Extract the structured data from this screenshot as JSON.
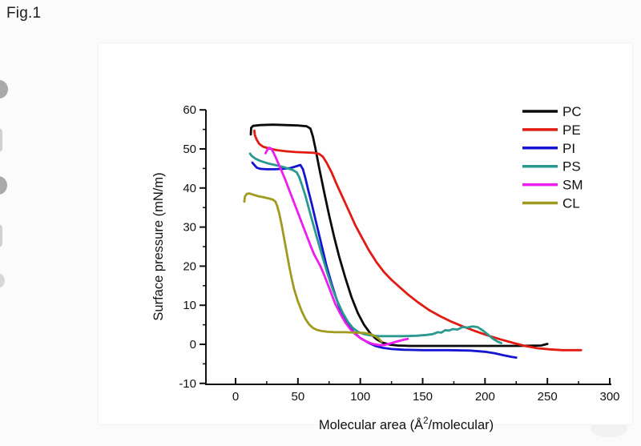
{
  "figure": {
    "caption": "Fig.1"
  },
  "chart_data": {
    "type": "line",
    "title": "",
    "ylabel": "Surface pressure (mN/m)",
    "xlabel": {
      "prefix": "Molecular area (Å",
      "sup": "2",
      "suffix": "/molecular)"
    },
    "xlim": [
      0,
      300
    ],
    "ylim": [
      -10,
      60
    ],
    "x_major_ticks": [
      0,
      50,
      100,
      150,
      200,
      250,
      300
    ],
    "x_minor_step": 25,
    "y_major_ticks": [
      -10,
      0,
      10,
      20,
      30,
      40,
      50,
      60
    ],
    "y_minor_step": 5,
    "grid": false,
    "legend_position": "top-right",
    "axis_color": "#111111",
    "series": [
      {
        "name": "PC",
        "color": "#0a0a0a",
        "points": [
          [
            12.2,
            53.7
          ],
          [
            12.5,
            55.4
          ],
          [
            14,
            55.9
          ],
          [
            20,
            56.1
          ],
          [
            30,
            56.2
          ],
          [
            40,
            56.1
          ],
          [
            50,
            56.0
          ],
          [
            57,
            55.8
          ],
          [
            60,
            55.2
          ],
          [
            62,
            53.2
          ],
          [
            64,
            50.2
          ],
          [
            67,
            45.2
          ],
          [
            71,
            39.0
          ],
          [
            75,
            33.0
          ],
          [
            79,
            27.5
          ],
          [
            83,
            22.5
          ],
          [
            88,
            17.0
          ],
          [
            93,
            12.0
          ],
          [
            98,
            8.0
          ],
          [
            103,
            5.0
          ],
          [
            108,
            2.8
          ],
          [
            113,
            1.3
          ],
          [
            118,
            0.4
          ],
          [
            124,
            -0.1
          ],
          [
            130,
            -0.3
          ],
          [
            140,
            -0.4
          ],
          [
            155,
            -0.4
          ],
          [
            175,
            -0.4
          ],
          [
            200,
            -0.4
          ],
          [
            225,
            -0.4
          ],
          [
            245,
            -0.3
          ],
          [
            250,
            0.1
          ]
        ]
      },
      {
        "name": "PE",
        "color": "#e11b12",
        "points": [
          [
            15,
            54.7
          ],
          [
            15.5,
            53.5
          ],
          [
            17,
            52.3
          ],
          [
            19,
            51.3
          ],
          [
            22,
            50.6
          ],
          [
            27,
            50.1
          ],
          [
            33,
            49.7
          ],
          [
            40,
            49.4
          ],
          [
            48,
            49.2
          ],
          [
            56,
            49.1
          ],
          [
            63,
            49.0
          ],
          [
            67,
            48.7
          ],
          [
            70,
            48.0
          ],
          [
            73,
            46.5
          ],
          [
            77,
            44.0
          ],
          [
            81,
            41.0
          ],
          [
            86,
            37.5
          ],
          [
            91,
            34.0
          ],
          [
            96,
            30.5
          ],
          [
            101,
            27.5
          ],
          [
            107,
            24.0
          ],
          [
            113,
            21.0
          ],
          [
            119,
            18.5
          ],
          [
            125,
            16.5
          ],
          [
            131,
            14.8
          ],
          [
            138,
            12.8
          ],
          [
            146,
            10.8
          ],
          [
            155,
            8.8
          ],
          [
            164,
            7.2
          ],
          [
            173,
            5.8
          ],
          [
            182,
            4.6
          ],
          [
            192,
            3.4
          ],
          [
            202,
            2.3
          ],
          [
            212,
            1.3
          ],
          [
            222,
            0.4
          ],
          [
            232,
            -0.4
          ],
          [
            242,
            -1.0
          ],
          [
            252,
            -1.3
          ],
          [
            262,
            -1.5
          ],
          [
            270,
            -1.5
          ],
          [
            277,
            -1.5
          ]
        ]
      },
      {
        "name": "PI",
        "color": "#1414d2",
        "points": [
          [
            13.5,
            46.5
          ],
          [
            15,
            45.9
          ],
          [
            17,
            45.2
          ],
          [
            20,
            44.9
          ],
          [
            25,
            44.8
          ],
          [
            31,
            44.8
          ],
          [
            38,
            44.9
          ],
          [
            44,
            45.1
          ],
          [
            49,
            45.6
          ],
          [
            52,
            45.9
          ],
          [
            54,
            44.8
          ],
          [
            56,
            42.5
          ],
          [
            58,
            39.8
          ],
          [
            61,
            36.0
          ],
          [
            64,
            32.0
          ],
          [
            67,
            28.0
          ],
          [
            70,
            24.0
          ],
          [
            73,
            20.0
          ],
          [
            77,
            15.5
          ],
          [
            81,
            11.5
          ],
          [
            85,
            8.0
          ],
          [
            90,
            5.0
          ],
          [
            95,
            3.0
          ],
          [
            100,
            1.6
          ],
          [
            106,
            0.5
          ],
          [
            112,
            -0.4
          ],
          [
            118,
            -0.9
          ],
          [
            125,
            -1.2
          ],
          [
            135,
            -1.4
          ],
          [
            150,
            -1.5
          ],
          [
            170,
            -1.5
          ],
          [
            188,
            -1.6
          ],
          [
            200,
            -1.9
          ],
          [
            208,
            -2.3
          ],
          [
            215,
            -2.8
          ],
          [
            221,
            -3.2
          ],
          [
            225,
            -3.4
          ]
        ]
      },
      {
        "name": "PS",
        "color": "#2a998f",
        "points": [
          [
            11.6,
            48.8
          ],
          [
            13,
            48.2
          ],
          [
            16,
            47.5
          ],
          [
            20,
            46.9
          ],
          [
            26,
            46.3
          ],
          [
            33,
            45.8
          ],
          [
            40,
            45.2
          ],
          [
            46,
            44.6
          ],
          [
            49,
            44.0
          ],
          [
            51,
            42.8
          ],
          [
            53,
            41.0
          ],
          [
            56,
            38.0
          ],
          [
            59,
            34.5
          ],
          [
            62,
            31.0
          ],
          [
            66,
            26.5
          ],
          [
            70,
            22.0
          ],
          [
            74,
            17.8
          ],
          [
            78,
            14.0
          ],
          [
            82,
            10.8
          ],
          [
            86,
            8.0
          ],
          [
            90,
            5.8
          ],
          [
            94,
            4.2
          ],
          [
            98,
            3.2
          ],
          [
            103,
            2.6
          ],
          [
            108,
            2.3
          ],
          [
            115,
            2.1
          ],
          [
            125,
            2.1
          ],
          [
            135,
            2.1
          ],
          [
            145,
            2.2
          ],
          [
            153,
            2.4
          ],
          [
            158,
            2.6
          ],
          [
            162,
            3.1
          ],
          [
            165,
            3.0
          ],
          [
            168,
            3.6
          ],
          [
            171,
            3.5
          ],
          [
            174,
            3.9
          ],
          [
            178,
            3.8
          ],
          [
            182,
            4.4
          ],
          [
            186,
            4.3
          ],
          [
            190,
            4.6
          ],
          [
            194,
            4.4
          ],
          [
            198,
            3.6
          ],
          [
            202,
            2.6
          ],
          [
            206,
            1.5
          ],
          [
            210,
            0.7
          ],
          [
            213,
            0.3
          ]
        ]
      },
      {
        "name": "SM",
        "color": "#ee1cee",
        "points": [
          [
            24,
            48.9
          ],
          [
            25.5,
            49.8
          ],
          [
            27,
            50.3
          ],
          [
            28.5,
            50.1
          ],
          [
            30,
            49.3
          ],
          [
            32,
            48.0
          ],
          [
            34,
            46.5
          ],
          [
            37,
            44.3
          ],
          [
            40,
            42.0
          ],
          [
            43,
            39.5
          ],
          [
            46,
            37.0
          ],
          [
            49,
            34.5
          ],
          [
            52,
            32.0
          ],
          [
            55,
            29.5
          ],
          [
            58,
            27.0
          ],
          [
            61,
            24.5
          ],
          [
            63,
            23.0
          ],
          [
            65,
            21.8
          ],
          [
            68,
            20.0
          ],
          [
            71,
            17.8
          ],
          [
            74,
            15.3
          ],
          [
            77,
            12.8
          ],
          [
            80,
            10.3
          ],
          [
            84,
            7.8
          ],
          [
            88,
            5.6
          ],
          [
            92,
            3.9
          ],
          [
            96,
            2.6
          ],
          [
            100,
            1.6
          ],
          [
            105,
            0.7
          ],
          [
            110,
            0.1
          ],
          [
            115,
            -0.2
          ],
          [
            119,
            -0.2
          ],
          [
            124,
            0.2
          ],
          [
            129,
            0.7
          ],
          [
            134,
            1.1
          ],
          [
            138,
            1.4
          ]
        ]
      },
      {
        "name": "CL",
        "color": "#a09a1e",
        "points": [
          [
            7,
            36.5
          ],
          [
            7.5,
            37.8
          ],
          [
            9,
            38.5
          ],
          [
            11,
            38.6
          ],
          [
            14,
            38.3
          ],
          [
            18,
            37.9
          ],
          [
            23,
            37.6
          ],
          [
            27,
            37.3
          ],
          [
            30,
            37.0
          ],
          [
            32,
            36.5
          ],
          [
            33.5,
            35.3
          ],
          [
            35,
            33.5
          ],
          [
            37,
            30.5
          ],
          [
            39,
            27.0
          ],
          [
            41,
            23.5
          ],
          [
            43,
            20.0
          ],
          [
            45,
            16.8
          ],
          [
            47,
            14.0
          ],
          [
            50,
            11.0
          ],
          [
            53,
            8.5
          ],
          [
            56,
            6.5
          ],
          [
            59,
            5.1
          ],
          [
            62,
            4.2
          ],
          [
            65,
            3.7
          ],
          [
            69,
            3.4
          ],
          [
            74,
            3.2
          ],
          [
            80,
            3.1
          ],
          [
            88,
            3.1
          ],
          [
            96,
            3.0
          ],
          [
            103,
            2.9
          ],
          [
            108,
            2.6
          ],
          [
            112,
            2.1
          ],
          [
            115,
            1.4
          ],
          [
            117,
            0.7
          ]
        ]
      }
    ],
    "legend": [
      {
        "label": "PC",
        "color": "#0a0a0a"
      },
      {
        "label": "PE",
        "color": "#e11b12"
      },
      {
        "label": "PI",
        "color": "#1414d2"
      },
      {
        "label": "PS",
        "color": "#2a998f"
      },
      {
        "label": "SM",
        "color": "#ee1cee"
      },
      {
        "label": "CL",
        "color": "#a09a1e"
      }
    ]
  }
}
